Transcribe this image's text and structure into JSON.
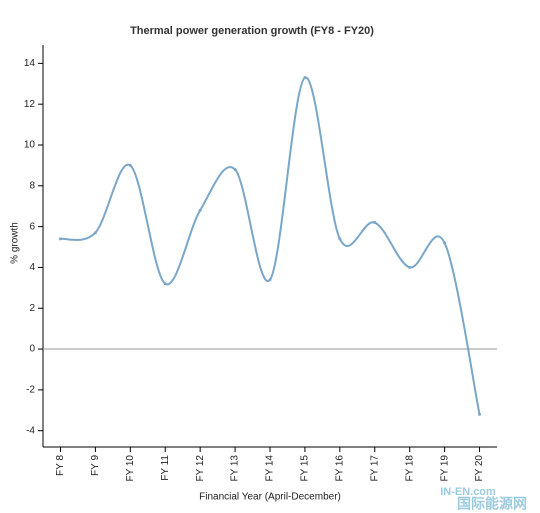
{
  "chart_data": {
    "type": "line",
    "title": "Thermal power generation growth (FY8 - FY20)",
    "x_label": "Financial Year (April-December)",
    "y_label": "% growth",
    "categories": [
      "FY 8",
      "FY 9",
      "FY 10",
      "FY 11",
      "FY 12",
      "FY 13",
      "FY 14",
      "FY 15",
      "FY 16",
      "FY 17",
      "FY 18",
      "FY 19",
      "FY 20"
    ],
    "series": [
      {
        "name": "% growth",
        "color": "#7aa6c8",
        "values": [
          5.4,
          5.7,
          9.0,
          3.2,
          6.8,
          8.8,
          3.4,
          13.3,
          5.4,
          6.2,
          4.0,
          5.2,
          -3.2
        ]
      }
    ],
    "ylim": [
      -4.8,
      14.9
    ],
    "yticks": [
      -4,
      -2,
      0,
      2,
      4,
      6,
      8,
      10,
      12,
      14
    ],
    "zero_line": true,
    "smooth": true,
    "watermark": [
      "IN-EN.com",
      "国际能源网"
    ]
  }
}
